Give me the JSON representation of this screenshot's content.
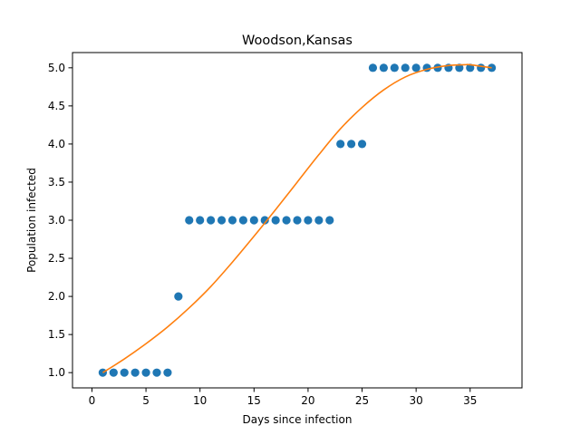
{
  "chart_data": {
    "type": "scatter",
    "title": "Woodson,Kansas",
    "xlabel": "Days since infection",
    "ylabel": "Population infected",
    "xlim": [
      -1.8,
      39.8
    ],
    "ylim": [
      0.8,
      5.2
    ],
    "xticks": [
      0,
      5,
      10,
      15,
      20,
      25,
      30,
      35
    ],
    "xtick_labels": [
      "0",
      "5",
      "10",
      "15",
      "20",
      "25",
      "30",
      "35"
    ],
    "yticks": [
      1.0,
      1.5,
      2.0,
      2.5,
      3.0,
      3.5,
      4.0,
      4.5,
      5.0
    ],
    "ytick_labels": [
      "1.0",
      "1.5",
      "2.0",
      "2.5",
      "3.0",
      "3.5",
      "4.0",
      "4.5",
      "5.0"
    ],
    "grid": false,
    "series": [
      {
        "kind": "scatter",
        "color": "#1f77b4",
        "x": [
          1,
          2,
          3,
          4,
          5,
          6,
          7,
          8,
          9,
          10,
          11,
          12,
          13,
          14,
          15,
          16,
          17,
          18,
          19,
          20,
          21,
          22,
          23,
          24,
          25,
          26,
          27,
          28,
          29,
          30,
          31,
          32,
          33,
          34,
          35,
          36,
          37
        ],
        "y": [
          1,
          1,
          1,
          1,
          1,
          1,
          1,
          2,
          3,
          3,
          3,
          3,
          3,
          3,
          3,
          3,
          3,
          3,
          3,
          3,
          3,
          3,
          4,
          4,
          4,
          5,
          5,
          5,
          5,
          5,
          5,
          5,
          5,
          5,
          5,
          5,
          5
        ]
      },
      {
        "kind": "line",
        "color": "#ff7f0e",
        "x": [
          1,
          3,
          5,
          7,
          9,
          11,
          13,
          15,
          17,
          19,
          21,
          23,
          25,
          27,
          29,
          31,
          33,
          34.5,
          35,
          37
        ],
        "y": [
          1.0,
          1.18,
          1.38,
          1.6,
          1.85,
          2.13,
          2.45,
          2.79,
          3.14,
          3.5,
          3.86,
          4.2,
          4.48,
          4.71,
          4.88,
          4.98,
          5.03,
          5.04,
          5.04,
          5.0
        ]
      }
    ]
  }
}
